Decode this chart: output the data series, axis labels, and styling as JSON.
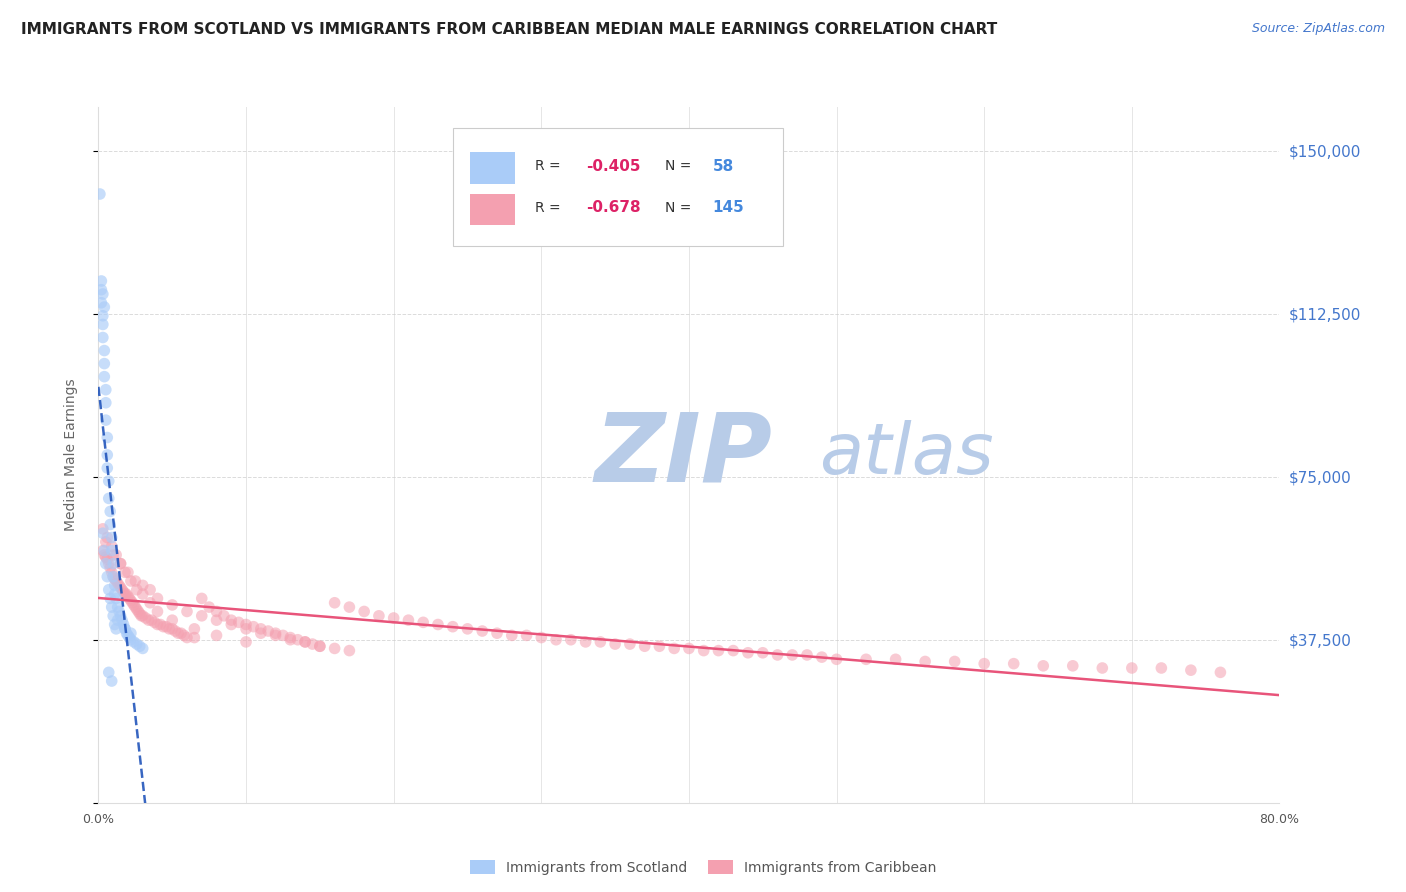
{
  "title": "IMMIGRANTS FROM SCOTLAND VS IMMIGRANTS FROM CARIBBEAN MEDIAN MALE EARNINGS CORRELATION CHART",
  "source": "Source: ZipAtlas.com",
  "ylabel": "Median Male Earnings",
  "yticks": [
    0,
    37500,
    75000,
    112500,
    150000
  ],
  "ytick_labels": [
    "",
    "$37,500",
    "$75,000",
    "$112,500",
    "$150,000"
  ],
  "ymin": 0,
  "ymax": 160000,
  "xmin": 0.0,
  "xmax": 0.8,
  "scotland_R": -0.405,
  "scotland_N": 58,
  "caribbean_R": -0.678,
  "caribbean_N": 145,
  "scotland_color": "#aaccf8",
  "caribbean_color": "#f4a0b0",
  "scotland_line_color": "#2255bb",
  "caribbean_line_color": "#e8547a",
  "background_color": "#ffffff",
  "watermark_zip": "ZIP",
  "watermark_atlas": "atlas",
  "watermark_color": "#b8cce8",
  "title_color": "#222222",
  "axis_label_color": "#666666",
  "right_tick_color": "#4477cc",
  "legend_R_color": "#dd2266",
  "legend_N_color": "#4488dd",
  "grid_color": "#cccccc",
  "scotland_x": [
    0.001,
    0.002,
    0.002,
    0.003,
    0.003,
    0.003,
    0.004,
    0.004,
    0.004,
    0.005,
    0.005,
    0.005,
    0.006,
    0.006,
    0.006,
    0.007,
    0.007,
    0.008,
    0.008,
    0.009,
    0.009,
    0.01,
    0.01,
    0.011,
    0.011,
    0.012,
    0.013,
    0.014,
    0.015,
    0.016,
    0.017,
    0.018,
    0.019,
    0.02,
    0.021,
    0.022,
    0.024,
    0.026,
    0.028,
    0.03,
    0.003,
    0.004,
    0.005,
    0.006,
    0.007,
    0.008,
    0.009,
    0.01,
    0.011,
    0.012,
    0.002,
    0.003,
    0.004,
    0.013,
    0.018,
    0.022,
    0.007,
    0.009
  ],
  "scotland_y": [
    140000,
    118000,
    115000,
    112000,
    110000,
    107000,
    104000,
    101000,
    98000,
    95000,
    92000,
    88000,
    84000,
    80000,
    77000,
    74000,
    70000,
    67000,
    64000,
    61000,
    58000,
    55000,
    52000,
    50000,
    48000,
    47000,
    45000,
    44000,
    43000,
    42000,
    41000,
    40000,
    39000,
    38500,
    38000,
    37500,
    37000,
    36500,
    36000,
    35500,
    62000,
    58000,
    55000,
    52000,
    49000,
    47000,
    45000,
    43000,
    41000,
    40000,
    120000,
    117000,
    114000,
    42000,
    40000,
    39000,
    30000,
    28000
  ],
  "caribbean_x": [
    0.003,
    0.004,
    0.005,
    0.006,
    0.007,
    0.008,
    0.009,
    0.01,
    0.011,
    0.012,
    0.013,
    0.014,
    0.015,
    0.016,
    0.017,
    0.018,
    0.019,
    0.02,
    0.021,
    0.022,
    0.023,
    0.024,
    0.025,
    0.026,
    0.027,
    0.028,
    0.029,
    0.03,
    0.032,
    0.034,
    0.036,
    0.038,
    0.04,
    0.042,
    0.044,
    0.046,
    0.048,
    0.05,
    0.052,
    0.054,
    0.056,
    0.058,
    0.06,
    0.065,
    0.07,
    0.075,
    0.08,
    0.085,
    0.09,
    0.095,
    0.1,
    0.105,
    0.11,
    0.115,
    0.12,
    0.125,
    0.13,
    0.135,
    0.14,
    0.145,
    0.15,
    0.16,
    0.17,
    0.18,
    0.19,
    0.2,
    0.21,
    0.22,
    0.23,
    0.24,
    0.25,
    0.26,
    0.27,
    0.28,
    0.29,
    0.3,
    0.31,
    0.32,
    0.33,
    0.34,
    0.35,
    0.36,
    0.37,
    0.38,
    0.39,
    0.4,
    0.41,
    0.42,
    0.43,
    0.44,
    0.45,
    0.46,
    0.47,
    0.48,
    0.49,
    0.5,
    0.52,
    0.54,
    0.56,
    0.58,
    0.6,
    0.62,
    0.64,
    0.66,
    0.68,
    0.7,
    0.72,
    0.74,
    0.76,
    0.005,
    0.01,
    0.015,
    0.02,
    0.025,
    0.03,
    0.035,
    0.04,
    0.05,
    0.06,
    0.07,
    0.08,
    0.09,
    0.1,
    0.11,
    0.12,
    0.13,
    0.14,
    0.15,
    0.16,
    0.17,
    0.003,
    0.006,
    0.009,
    0.012,
    0.015,
    0.018,
    0.022,
    0.026,
    0.03,
    0.035,
    0.04,
    0.05,
    0.065,
    0.08,
    0.1
  ],
  "caribbean_y": [
    58000,
    57000,
    56500,
    56000,
    55000,
    54000,
    53000,
    52000,
    51500,
    51000,
    50500,
    50000,
    49500,
    49000,
    48500,
    48000,
    48000,
    47500,
    47000,
    46500,
    46000,
    45500,
    45000,
    44500,
    44000,
    43500,
    43000,
    43000,
    42500,
    42000,
    42000,
    41500,
    41000,
    41000,
    40500,
    40500,
    40000,
    40000,
    39500,
    39000,
    39000,
    38500,
    38000,
    38000,
    47000,
    45000,
    44000,
    43000,
    42000,
    41500,
    41000,
    40500,
    40000,
    39500,
    39000,
    38500,
    38000,
    37500,
    37000,
    36500,
    36000,
    46000,
    45000,
    44000,
    43000,
    42500,
    42000,
    41500,
    41000,
    40500,
    40000,
    39500,
    39000,
    38500,
    38500,
    38000,
    37500,
    37500,
    37000,
    37000,
    36500,
    36500,
    36000,
    36000,
    35500,
    35500,
    35000,
    35000,
    35000,
    34500,
    34500,
    34000,
    34000,
    34000,
    33500,
    33000,
    33000,
    33000,
    32500,
    32500,
    32000,
    32000,
    31500,
    31500,
    31000,
    31000,
    31000,
    30500,
    30000,
    60000,
    57000,
    55000,
    53000,
    51000,
    50000,
    49000,
    47000,
    45500,
    44000,
    43000,
    42000,
    41000,
    40000,
    39000,
    38500,
    37500,
    37000,
    36000,
    35500,
    35000,
    63000,
    61000,
    59000,
    57000,
    55000,
    53000,
    51000,
    49000,
    48000,
    46000,
    44000,
    42000,
    40000,
    38500,
    37000
  ]
}
